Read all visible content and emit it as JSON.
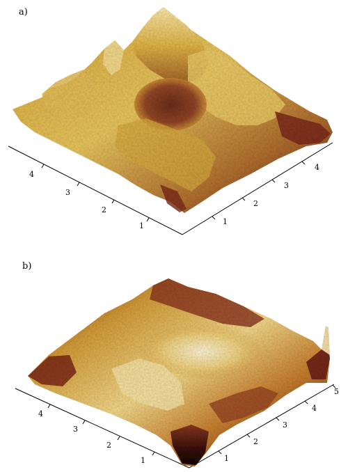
{
  "panels": [
    {
      "label": "a)",
      "left_axis_ticks": [
        "1",
        "2",
        "3",
        "4"
      ],
      "right_axis_ticks": [
        "1",
        "2",
        "3",
        "4"
      ]
    },
    {
      "label": "b)",
      "left_axis_ticks": [
        "1",
        "2",
        "3",
        "4"
      ],
      "right_axis_ticks": [
        "1",
        "2",
        "3",
        "4",
        "5"
      ]
    }
  ],
  "colors": {
    "peak": "#fff6c8",
    "high": "#e6c24a",
    "mid": "#c99a2a",
    "low": "#a35a2a",
    "valley": "#6b2018",
    "deep": "#1a0806"
  }
}
